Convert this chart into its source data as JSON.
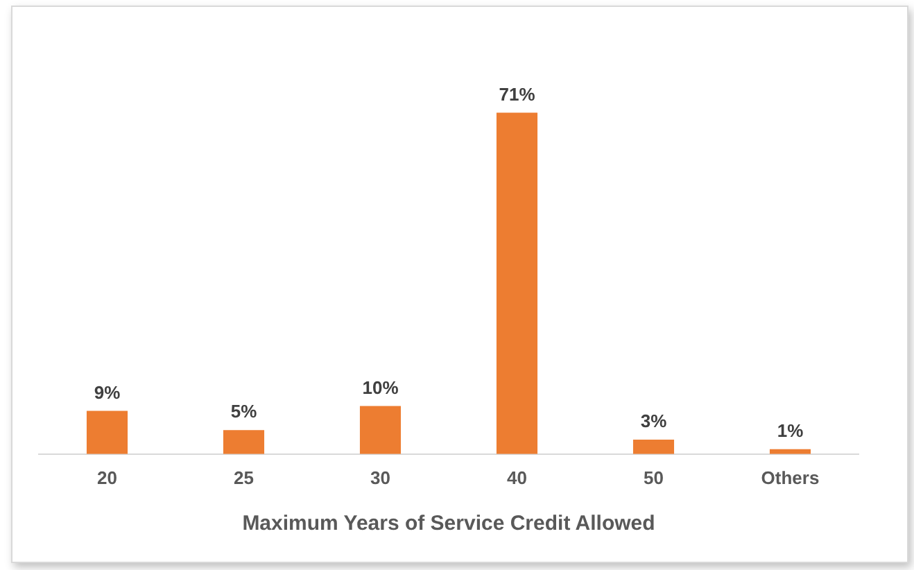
{
  "chart_data": {
    "type": "bar",
    "xlabel": "Maximum Years of Service Credit Allowed",
    "categories": [
      "20",
      "25",
      "30",
      "40",
      "50",
      "Others"
    ],
    "values": [
      9,
      5,
      10,
      71,
      3,
      1
    ],
    "color": "#ed7d31",
    "value_labels": [
      "9%",
      "5%",
      "10%",
      "71%",
      "3%",
      "1%"
    ],
    "grid": false,
    "legend": false
  }
}
